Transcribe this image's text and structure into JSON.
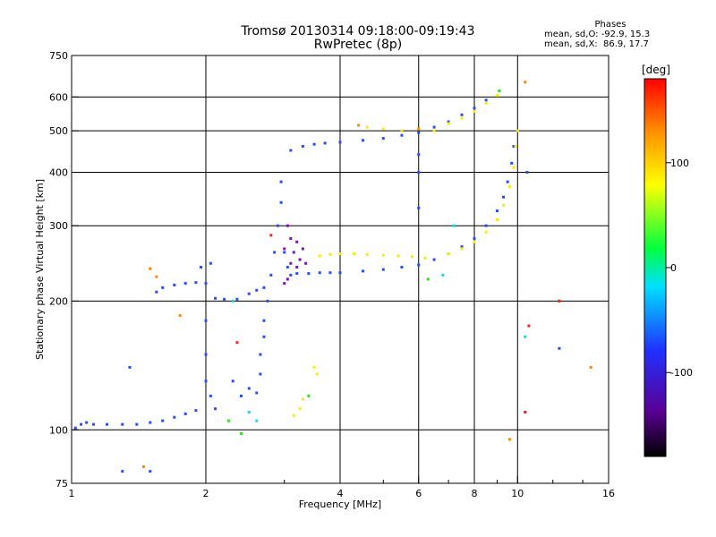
{
  "header": {
    "title": "Tromsø 20130314 09:18:00-09:19:43",
    "subtitle": "RwPretec (8p)"
  },
  "phase_stats": {
    "heading": "Phases",
    "line_o": "mean, sd,O: -92.9, 15.3",
    "line_x": "mean, sd,X:  86.9, 17.7"
  },
  "chart_data": {
    "type": "scatter",
    "title": "Tromsø 20130314 09:18:00-09:19:43",
    "subtitle": "RwPretec (8p)",
    "xlabel": "Frequency [MHz]",
    "ylabel": "Stationary phase Virtual Height [km]",
    "x_scale": "log",
    "y_scale": "log",
    "xlim": [
      1,
      16
    ],
    "ylim": [
      75,
      750
    ],
    "x_ticks": [
      1,
      2,
      4,
      6,
      8,
      10,
      16
    ],
    "y_ticks": [
      75,
      100,
      200,
      300,
      400,
      500,
      600,
      750
    ],
    "grid": true,
    "colorbar": {
      "label": "[deg]",
      "range": [
        -180,
        180
      ],
      "ticks": [
        100,
        0,
        -100
      ],
      "colormap": [
        "#000000",
        "#5a0094",
        "#2030ff",
        "#00e0ff",
        "#00ff40",
        "#ffff00",
        "#ff9000",
        "#ff0000"
      ]
    },
    "series": [
      {
        "phase_color": "#2a4cff",
        "points": [
          [
            1.02,
            101
          ],
          [
            1.05,
            103
          ],
          [
            1.08,
            104
          ],
          [
            1.12,
            103
          ],
          [
            1.2,
            103
          ],
          [
            1.3,
            103
          ],
          [
            1.4,
            103
          ],
          [
            1.5,
            104
          ],
          [
            1.6,
            105
          ],
          [
            1.7,
            107
          ],
          [
            1.8,
            109
          ],
          [
            1.9,
            111
          ],
          [
            1.55,
            210
          ],
          [
            1.6,
            215
          ],
          [
            1.7,
            218
          ],
          [
            1.8,
            220
          ],
          [
            1.9,
            221
          ],
          [
            2.0,
            220
          ],
          [
            2.1,
            203
          ],
          [
            2.2,
            202
          ],
          [
            2.35,
            202
          ],
          [
            2.5,
            208
          ],
          [
            2.6,
            212
          ],
          [
            2.7,
            215
          ],
          [
            2.0,
            180
          ],
          [
            2.0,
            150
          ],
          [
            2.0,
            130
          ],
          [
            2.05,
            120
          ],
          [
            2.1,
            112
          ],
          [
            1.95,
            240
          ],
          [
            2.05,
            245
          ],
          [
            2.3,
            130
          ],
          [
            2.4,
            120
          ],
          [
            2.5,
            125
          ],
          [
            2.6,
            122
          ],
          [
            2.65,
            135
          ],
          [
            2.65,
            150
          ],
          [
            2.7,
            165
          ],
          [
            2.7,
            180
          ],
          [
            2.75,
            200
          ],
          [
            2.8,
            230
          ],
          [
            2.85,
            260
          ],
          [
            2.9,
            300
          ],
          [
            2.95,
            340
          ],
          [
            2.95,
            380
          ],
          [
            3.0,
            260
          ],
          [
            3.05,
            240
          ],
          [
            3.1,
            230
          ],
          [
            3.2,
            232
          ],
          [
            3.4,
            232
          ],
          [
            3.6,
            233
          ],
          [
            3.8,
            233
          ],
          [
            4.0,
            233
          ],
          [
            4.5,
            235
          ],
          [
            5.0,
            237
          ],
          [
            5.5,
            240
          ],
          [
            6.0,
            243
          ],
          [
            6.5,
            250
          ],
          [
            7.0,
            258
          ],
          [
            7.5,
            268
          ],
          [
            8.0,
            280
          ],
          [
            8.5,
            300
          ],
          [
            9.0,
            325
          ],
          [
            9.3,
            350
          ],
          [
            9.5,
            380
          ],
          [
            9.7,
            420
          ],
          [
            9.8,
            460
          ],
          [
            3.1,
            450
          ],
          [
            3.3,
            460
          ],
          [
            3.5,
            465
          ],
          [
            3.7,
            468
          ],
          [
            4.0,
            470
          ],
          [
            4.5,
            475
          ],
          [
            5.0,
            480
          ],
          [
            5.5,
            488
          ],
          [
            6.0,
            495
          ],
          [
            6.5,
            510
          ],
          [
            7.0,
            525
          ],
          [
            7.5,
            545
          ],
          [
            8.0,
            565
          ],
          [
            8.5,
            590
          ],
          [
            6.0,
            330
          ],
          [
            6.0,
            400
          ],
          [
            6.0,
            440
          ],
          [
            1.35,
            140
          ],
          [
            1.3,
            80
          ],
          [
            1.5,
            80
          ],
          [
            12.4,
            155
          ],
          [
            10.5,
            400
          ]
        ]
      },
      {
        "phase_color": "#f2f000",
        "points": [
          [
            3.6,
            255
          ],
          [
            3.8,
            257
          ],
          [
            4.0,
            258
          ],
          [
            4.3,
            258
          ],
          [
            4.6,
            257
          ],
          [
            5.0,
            256
          ],
          [
            5.4,
            255
          ],
          [
            5.8,
            254
          ],
          [
            6.2,
            252
          ],
          [
            7.0,
            258
          ],
          [
            7.5,
            265
          ],
          [
            8.0,
            275
          ],
          [
            8.5,
            290
          ],
          [
            9.0,
            310
          ],
          [
            9.3,
            335
          ],
          [
            9.6,
            370
          ],
          [
            9.8,
            410
          ],
          [
            9.9,
            460
          ],
          [
            10.0,
            500
          ],
          [
            4.6,
            510
          ],
          [
            5.0,
            505
          ],
          [
            5.5,
            500
          ],
          [
            6.0,
            505
          ],
          [
            6.5,
            500
          ],
          [
            7.0,
            520
          ],
          [
            7.5,
            535
          ],
          [
            8.0,
            555
          ],
          [
            8.5,
            580
          ],
          [
            9.0,
            605
          ],
          [
            3.5,
            140
          ],
          [
            3.55,
            135
          ],
          [
            3.3,
            118
          ],
          [
            3.25,
            112
          ],
          [
            3.15,
            108
          ]
        ]
      },
      {
        "phase_color": "#7a14ad",
        "points": [
          [
            3.0,
            220
          ],
          [
            3.05,
            225
          ],
          [
            3.1,
            245
          ],
          [
            3.1,
            280
          ],
          [
            3.15,
            260
          ],
          [
            3.2,
            240
          ],
          [
            3.25,
            250
          ],
          [
            3.2,
            275
          ],
          [
            3.3,
            265
          ],
          [
            3.35,
            245
          ],
          [
            3.05,
            300
          ],
          [
            3.0,
            265
          ]
        ]
      },
      {
        "phase_color": "#13d8f0",
        "points": [
          [
            2.3,
            200
          ],
          [
            2.5,
            110
          ],
          [
            2.6,
            105
          ],
          [
            6.8,
            230
          ],
          [
            7.2,
            300
          ],
          [
            10.4,
            165
          ]
        ]
      },
      {
        "phase_color": "#ff8a00",
        "points": [
          [
            1.5,
            238
          ],
          [
            1.55,
            228
          ],
          [
            1.75,
            185
          ],
          [
            4.4,
            515
          ],
          [
            6.0,
            505
          ],
          [
            10.4,
            650
          ],
          [
            12.4,
            200
          ],
          [
            14.6,
            140
          ],
          [
            10.4,
            110
          ],
          [
            9.6,
            95
          ],
          [
            1.45,
            82
          ]
        ]
      },
      {
        "phase_color": "#30e020",
        "points": [
          [
            2.4,
            98
          ],
          [
            3.4,
            120
          ],
          [
            6.3,
            225
          ],
          [
            9.1,
            620
          ],
          [
            2.25,
            105
          ]
        ]
      },
      {
        "phase_color": "#ff1e1e",
        "points": [
          [
            10.4,
            110
          ],
          [
            10.6,
            175
          ],
          [
            12.4,
            200
          ],
          [
            2.8,
            285
          ],
          [
            2.35,
            160
          ]
        ]
      }
    ]
  }
}
